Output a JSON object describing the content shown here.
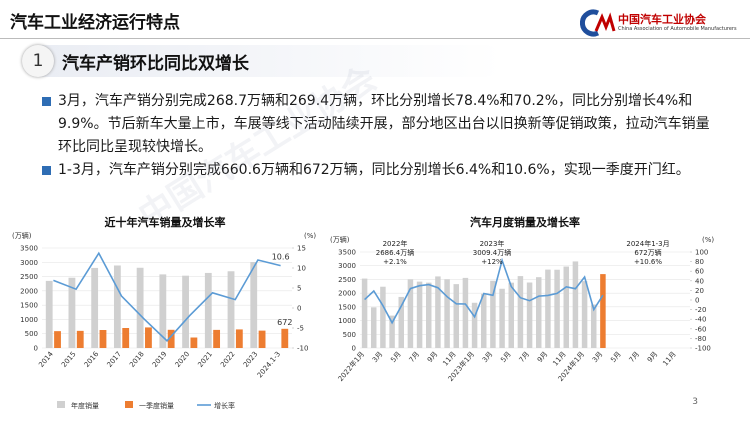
{
  "header": {
    "title": "汽车工业经济运行特点",
    "logo_cn": "中国汽车工业协会",
    "logo_en": "China Association of Automobile Manufacturers"
  },
  "section": {
    "number": "1",
    "title": "汽车产销环比同比双增长"
  },
  "bullets": [
    "3月，汽车产销分别完成268.7万辆和269.4万辆，环比分别增长78.4%和70.2%，同比分别增长4%和9.9%。节后新车大量上市，车展等线下活动陆续开展，部分地区出台以旧换新等促销政策，拉动汽车销量环比同比呈现较快增长。",
    "1-3月，汽车产销分别完成660.6万辆和672万辆，同比分别增长6.4%和10.6%，实现一季度开门红。"
  ],
  "watermark": "中国汽车工业协会",
  "page_number": "3",
  "chart_data": [
    {
      "type": "combo",
      "title": "近十年汽车销量及增长率",
      "y_label": "(万辆)",
      "y2_label": "(%)",
      "categories": [
        "2014",
        "2015",
        "2016",
        "2017",
        "2018",
        "2019",
        "2020",
        "2021",
        "2022",
        "2023",
        "2024.1-3"
      ],
      "series": [
        {
          "name": "年度销量",
          "kind": "bar",
          "color": "#d0d0d0",
          "values": [
            2349,
            2460,
            2803,
            2888,
            2808,
            2577,
            2531,
            2627,
            2686,
            3009,
            null
          ]
        },
        {
          "name": "一季度销量",
          "kind": "bar",
          "color": "#ed7d31",
          "values": [
            590,
            600,
            630,
            700,
            720,
            637,
            367,
            634,
            650,
            608,
            672
          ],
          "label_last_point": true
        },
        {
          "name": "增长率",
          "kind": "line",
          "axis": "y2",
          "color": "#5b9bd5",
          "values": [
            6.9,
            4.7,
            13.7,
            3.0,
            -2.8,
            -8.2,
            -1.9,
            3.8,
            2.1,
            12.0,
            10.6
          ],
          "label_last_point": true
        }
      ],
      "ylim": [
        0,
        3500
      ],
      "yticks": [
        0,
        500,
        1000,
        1500,
        2000,
        2500,
        3000,
        3500
      ],
      "y2lim": [
        -10,
        15
      ],
      "y2ticks": [
        -10,
        -5,
        0,
        5,
        10,
        15
      ],
      "legend": "bottom"
    },
    {
      "type": "combo",
      "title": "汽车月度销量及增长率",
      "y_label": "(万辆)",
      "y2_label": "(%)",
      "categories": [
        "2022年1月",
        null,
        "3月",
        null,
        "5月",
        null,
        "7月",
        null,
        "9月",
        null,
        "11月",
        null,
        "2023年1月",
        null,
        "3月",
        null,
        "5月",
        null,
        "7月",
        null,
        "9月",
        null,
        "11月",
        null,
        "2024年1月",
        null,
        "3月",
        null,
        "5月",
        null,
        "7月",
        null,
        "9月",
        null,
        "11月",
        null
      ],
      "series": [
        {
          "name": "销量",
          "kind": "bar",
          "color": "#d0d0d0",
          "colors": [
            "#d0d0d0",
            "#d0d0d0",
            "#d0d0d0",
            "#d0d0d0",
            "#d0d0d0",
            "#d0d0d0",
            "#d0d0d0",
            "#d0d0d0",
            "#d0d0d0",
            "#d0d0d0",
            "#d0d0d0",
            "#d0d0d0",
            "#d0d0d0",
            "#d0d0d0",
            "#d0d0d0",
            "#d0d0d0",
            "#d0d0d0",
            "#d0d0d0",
            "#d0d0d0",
            "#d0d0d0",
            "#d0d0d0",
            "#d0d0d0",
            "#d0d0d0",
            "#d0d0d0",
            "#d0d0d0",
            "#d0d0d0",
            "#ed7d31",
            "#d0d0d0",
            "#d0d0d0",
            "#d0d0d0",
            "#d0d0d0",
            "#d0d0d0",
            "#d0d0d0",
            "#d0d0d0",
            "#d0d0d0",
            "#d0d0d0"
          ],
          "values": [
            2531,
            1482,
            2234,
            1181,
            1862,
            2502,
            2420,
            2383,
            2610,
            2505,
            2329,
            2556,
            1649,
            1976,
            2451,
            2160,
            2382,
            2622,
            2387,
            2582,
            2858,
            2853,
            2970,
            3156,
            2439,
            1584,
            2694,
            null,
            null,
            null,
            null,
            null,
            null,
            null,
            null,
            null
          ]
        },
        {
          "name": "增长率",
          "kind": "line",
          "axis": "y2",
          "color": "#5b9bd5",
          "values": [
            0.9,
            18.7,
            -11.7,
            -47.6,
            -12.6,
            23.8,
            29.7,
            32.1,
            25.7,
            6.9,
            -7.9,
            -8.4,
            -35.0,
            13.5,
            9.7,
            82.7,
            27.9,
            4.8,
            -1.4,
            8.2,
            9.5,
            13.8,
            27.4,
            23.5,
            47.9,
            -19.9,
            9.9,
            null,
            null,
            null,
            null,
            null,
            null,
            null,
            null,
            null
          ]
        }
      ],
      "annotations": [
        [
          "2022年",
          "2686.4万辆",
          "+2.1%"
        ],
        [
          "2023年",
          "3009.4万辆",
          "+12%"
        ],
        [
          "2024年1-3月",
          "672万辆",
          "+10.6%"
        ]
      ],
      "ylim": [
        0,
        3500
      ],
      "yticks": [
        0,
        500,
        1000,
        1500,
        2000,
        2500,
        3000,
        3500
      ],
      "y2lim": [
        -100,
        100
      ],
      "y2ticks": [
        -100,
        -80,
        -60,
        -40,
        -20,
        0,
        20,
        40,
        60,
        80,
        100
      ]
    }
  ]
}
